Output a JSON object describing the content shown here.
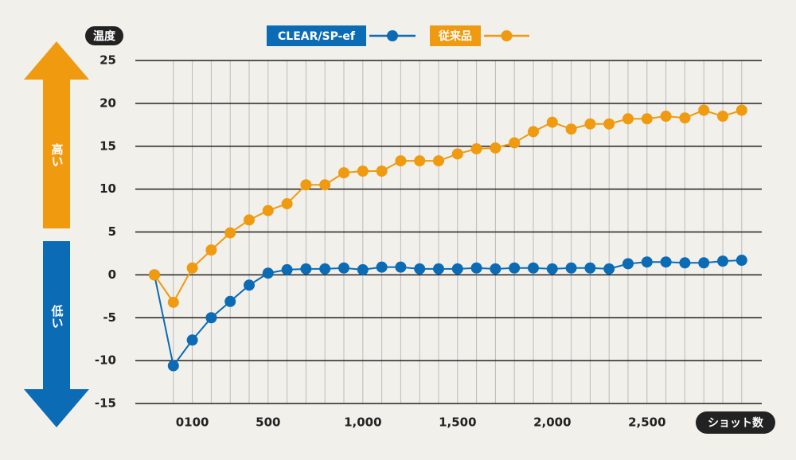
{
  "chart_data": {
    "type": "line",
    "y_axis_label": "温度",
    "x_axis_label": "ショット数",
    "high_label": "高い",
    "low_label": "低い",
    "categories": [
      null,
      null,
      "0100",
      null,
      null,
      null,
      "500",
      null,
      null,
      null,
      null,
      "1,000",
      null,
      null,
      null,
      null,
      "1,500",
      null,
      null,
      null,
      null,
      "2,000",
      null,
      null,
      null,
      null,
      "2,500",
      null,
      null,
      null,
      null,
      null
    ],
    "series": [
      {
        "name": "CLEAR/SP-ef",
        "color": "#0b6bb5",
        "values": [
          0,
          -10.6,
          -7.6,
          -5,
          -3.1,
          -1.2,
          0.2,
          0.6,
          0.7,
          0.7,
          0.8,
          0.6,
          0.9,
          0.9,
          0.7,
          0.7,
          0.7,
          0.8,
          0.7,
          0.8,
          0.8,
          0.7,
          0.8,
          0.8,
          0.7,
          1.3,
          1.5,
          1.5,
          1.4,
          1.4,
          1.6,
          1.7
        ]
      },
      {
        "name": "従来品",
        "color": "#ef9a0f",
        "values": [
          0,
          -3.2,
          0.8,
          2.9,
          4.9,
          6.4,
          7.5,
          8.3,
          10.5,
          10.5,
          11.9,
          12.1,
          12.1,
          13.3,
          13.3,
          13.3,
          14.1,
          14.7,
          14.8,
          15.4,
          16.7,
          17.8,
          17.0,
          17.6,
          17.6,
          18.2,
          18.2,
          18.5,
          18.3,
          19.2,
          18.5,
          19.2
        ]
      }
    ],
    "ylim": [
      -15,
      25
    ],
    "yticks": [
      25,
      20,
      15,
      10,
      5,
      0,
      -5,
      -10,
      -15
    ],
    "grid": true
  }
}
